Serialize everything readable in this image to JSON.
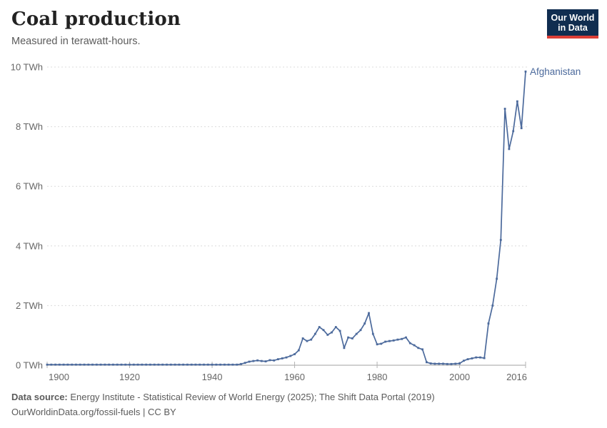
{
  "header": {
    "title": "Coal production",
    "subtitle": "Measured in terawatt-hours."
  },
  "logo": {
    "line1": "Our World",
    "line2": "in Data",
    "bg_color": "#102d50",
    "accent_color": "#dc3e36"
  },
  "footer": {
    "datasource_label": "Data source:",
    "datasource_text": " Energy Institute - Statistical Review of World Energy (2025); The Shift Data Portal (2019)",
    "note": "OurWorldinData.org/fossil-fuels | CC BY"
  },
  "chart_data": {
    "type": "line",
    "title": "Coal production",
    "subtitle": "Measured in terawatt-hours.",
    "unit": "TWh",
    "entity_label": "Afghanistan",
    "line_color": "#4C6A9C",
    "grid_color": "#dcdcdc",
    "axis_color": "#a1a1a1",
    "tick_label_color": "#666666",
    "grid": "dashed-horizontal",
    "legend_position": "end-of-line",
    "xlim": [
      1900,
      2016
    ],
    "ylim": [
      0,
      10
    ],
    "x_ticks": [
      1900,
      1920,
      1940,
      1960,
      1980,
      2000,
      2016
    ],
    "y_ticks": [
      0,
      2,
      4,
      6,
      8,
      10
    ],
    "y_tick_suffix": " TWh",
    "series": [
      {
        "name": "Afghanistan",
        "points": [
          [
            1900,
            0.02
          ],
          [
            1901,
            0.02
          ],
          [
            1902,
            0.02
          ],
          [
            1903,
            0.02
          ],
          [
            1904,
            0.02
          ],
          [
            1905,
            0.02
          ],
          [
            1906,
            0.02
          ],
          [
            1907,
            0.02
          ],
          [
            1908,
            0.02
          ],
          [
            1909,
            0.02
          ],
          [
            1910,
            0.02
          ],
          [
            1911,
            0.02
          ],
          [
            1912,
            0.02
          ],
          [
            1913,
            0.02
          ],
          [
            1914,
            0.02
          ],
          [
            1915,
            0.02
          ],
          [
            1916,
            0.02
          ],
          [
            1917,
            0.02
          ],
          [
            1918,
            0.02
          ],
          [
            1919,
            0.02
          ],
          [
            1920,
            0.02
          ],
          [
            1921,
            0.02
          ],
          [
            1922,
            0.02
          ],
          [
            1923,
            0.02
          ],
          [
            1924,
            0.02
          ],
          [
            1925,
            0.02
          ],
          [
            1926,
            0.02
          ],
          [
            1927,
            0.02
          ],
          [
            1928,
            0.02
          ],
          [
            1929,
            0.02
          ],
          [
            1930,
            0.02
          ],
          [
            1931,
            0.02
          ],
          [
            1932,
            0.02
          ],
          [
            1933,
            0.02
          ],
          [
            1934,
            0.02
          ],
          [
            1935,
            0.02
          ],
          [
            1936,
            0.02
          ],
          [
            1937,
            0.02
          ],
          [
            1938,
            0.02
          ],
          [
            1939,
            0.02
          ],
          [
            1940,
            0.02
          ],
          [
            1941,
            0.02
          ],
          [
            1942,
            0.02
          ],
          [
            1943,
            0.02
          ],
          [
            1944,
            0.02
          ],
          [
            1945,
            0.02
          ],
          [
            1946,
            0.02
          ],
          [
            1947,
            0.04
          ],
          [
            1948,
            0.08
          ],
          [
            1949,
            0.12
          ],
          [
            1950,
            0.14
          ],
          [
            1951,
            0.16
          ],
          [
            1952,
            0.14
          ],
          [
            1953,
            0.13
          ],
          [
            1954,
            0.17
          ],
          [
            1955,
            0.16
          ],
          [
            1956,
            0.2
          ],
          [
            1957,
            0.23
          ],
          [
            1958,
            0.26
          ],
          [
            1959,
            0.31
          ],
          [
            1960,
            0.37
          ],
          [
            1961,
            0.5
          ],
          [
            1962,
            0.9
          ],
          [
            1963,
            0.81
          ],
          [
            1964,
            0.86
          ],
          [
            1965,
            1.05
          ],
          [
            1966,
            1.28
          ],
          [
            1967,
            1.18
          ],
          [
            1968,
            1.02
          ],
          [
            1969,
            1.1
          ],
          [
            1970,
            1.28
          ],
          [
            1971,
            1.15
          ],
          [
            1972,
            0.58
          ],
          [
            1973,
            0.93
          ],
          [
            1974,
            0.9
          ],
          [
            1975,
            1.05
          ],
          [
            1976,
            1.18
          ],
          [
            1977,
            1.4
          ],
          [
            1978,
            1.75
          ],
          [
            1979,
            1.05
          ],
          [
            1980,
            0.7
          ],
          [
            1981,
            0.72
          ],
          [
            1982,
            0.79
          ],
          [
            1983,
            0.81
          ],
          [
            1984,
            0.83
          ],
          [
            1985,
            0.86
          ],
          [
            1986,
            0.88
          ],
          [
            1987,
            0.93
          ],
          [
            1988,
            0.74
          ],
          [
            1989,
            0.67
          ],
          [
            1990,
            0.58
          ],
          [
            1991,
            0.53
          ],
          [
            1992,
            0.1
          ],
          [
            1993,
            0.06
          ],
          [
            1994,
            0.05
          ],
          [
            1995,
            0.05
          ],
          [
            1996,
            0.05
          ],
          [
            1997,
            0.04
          ],
          [
            1998,
            0.04
          ],
          [
            1999,
            0.05
          ],
          [
            2000,
            0.06
          ],
          [
            2001,
            0.15
          ],
          [
            2002,
            0.2
          ],
          [
            2003,
            0.23
          ],
          [
            2004,
            0.26
          ],
          [
            2005,
            0.26
          ],
          [
            2006,
            0.24
          ],
          [
            2007,
            1.4
          ],
          [
            2008,
            2.0
          ],
          [
            2009,
            2.9
          ],
          [
            2010,
            4.2
          ],
          [
            2011,
            8.6
          ],
          [
            2012,
            7.25
          ],
          [
            2013,
            7.85
          ],
          [
            2014,
            8.85
          ],
          [
            2015,
            7.95
          ],
          [
            2016,
            9.85
          ]
        ]
      }
    ]
  }
}
